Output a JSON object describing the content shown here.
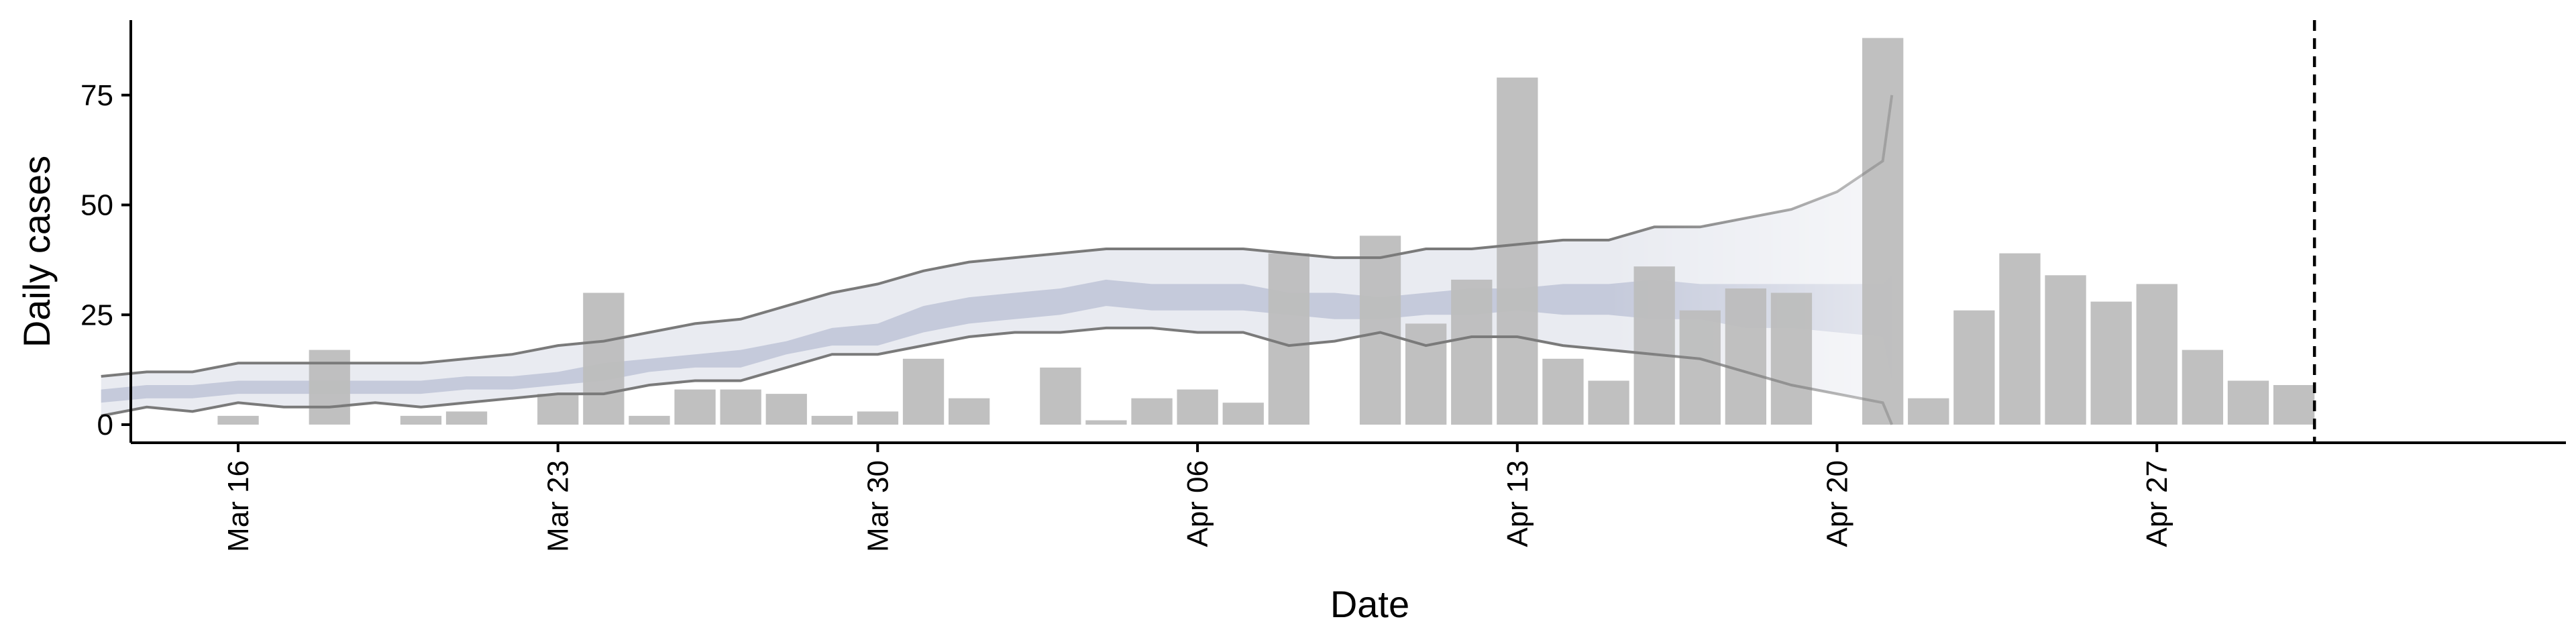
{
  "chart_data": {
    "type": "bar",
    "xlabel": "Date",
    "ylabel": "Daily cases",
    "ylim": [
      -4,
      96
    ],
    "yticks": [
      0,
      25,
      50,
      75
    ],
    "x_start": "2020-03-13",
    "x_end": "2020-04-30",
    "xticks": [
      {
        "date": "2020-03-16",
        "label": "Mar 16"
      },
      {
        "date": "2020-03-23",
        "label": "Mar 23"
      },
      {
        "date": "2020-03-30",
        "label": "Mar 30"
      },
      {
        "date": "2020-04-06",
        "label": "Apr 06"
      },
      {
        "date": "2020-04-13",
        "label": "Apr 13"
      },
      {
        "date": "2020-04-20",
        "label": "Apr 20"
      },
      {
        "date": "2020-04-27",
        "label": "Apr 27"
      }
    ],
    "bars": [
      {
        "date": "2020-03-16",
        "value": 2
      },
      {
        "date": "2020-03-18",
        "value": 17
      },
      {
        "date": "2020-03-20",
        "value": 2
      },
      {
        "date": "2020-03-21",
        "value": 3
      },
      {
        "date": "2020-03-23",
        "value": 7
      },
      {
        "date": "2020-03-24",
        "value": 30
      },
      {
        "date": "2020-03-25",
        "value": 2
      },
      {
        "date": "2020-03-26",
        "value": 8
      },
      {
        "date": "2020-03-27",
        "value": 8
      },
      {
        "date": "2020-03-28",
        "value": 7
      },
      {
        "date": "2020-03-29",
        "value": 2
      },
      {
        "date": "2020-03-30",
        "value": 3
      },
      {
        "date": "2020-03-31",
        "value": 15
      },
      {
        "date": "2020-04-01",
        "value": 6
      },
      {
        "date": "2020-04-03",
        "value": 13
      },
      {
        "date": "2020-04-04",
        "value": 1
      },
      {
        "date": "2020-04-05",
        "value": 6
      },
      {
        "date": "2020-04-06",
        "value": 8
      },
      {
        "date": "2020-04-07",
        "value": 5
      },
      {
        "date": "2020-04-08",
        "value": 39
      },
      {
        "date": "2020-04-10",
        "value": 43
      },
      {
        "date": "2020-04-11",
        "value": 23
      },
      {
        "date": "2020-04-12",
        "value": 33
      },
      {
        "date": "2020-04-13",
        "value": 79
      },
      {
        "date": "2020-04-14",
        "value": 15
      },
      {
        "date": "2020-04-15",
        "value": 10
      },
      {
        "date": "2020-04-16",
        "value": 36
      },
      {
        "date": "2020-04-17",
        "value": 26
      },
      {
        "date": "2020-04-18",
        "value": 31
      },
      {
        "date": "2020-04-19",
        "value": 30
      },
      {
        "date": "2020-04-21",
        "value": 88
      },
      {
        "date": "2020-04-22",
        "value": 6
      },
      {
        "date": "2020-04-23",
        "value": 26
      },
      {
        "date": "2020-04-24",
        "value": 39
      },
      {
        "date": "2020-04-25",
        "value": 34
      },
      {
        "date": "2020-04-26",
        "value": 28
      },
      {
        "date": "2020-04-27",
        "value": 32
      },
      {
        "date": "2020-04-28",
        "value": 17
      },
      {
        "date": "2020-04-29",
        "value": 10
      },
      {
        "date": "2020-04-30",
        "value": 9
      }
    ],
    "estimate_band": {
      "dates": [
        "2020-03-13",
        "2020-03-14",
        "2020-03-15",
        "2020-03-16",
        "2020-03-17",
        "2020-03-18",
        "2020-03-19",
        "2020-03-20",
        "2020-03-21",
        "2020-03-22",
        "2020-03-23",
        "2020-03-24",
        "2020-03-25",
        "2020-03-26",
        "2020-03-27",
        "2020-03-28",
        "2020-03-29",
        "2020-03-30",
        "2020-03-31",
        "2020-04-01",
        "2020-04-02",
        "2020-04-03",
        "2020-04-04",
        "2020-04-05",
        "2020-04-06",
        "2020-04-07",
        "2020-04-08",
        "2020-04-09",
        "2020-04-10",
        "2020-04-11",
        "2020-04-12",
        "2020-04-13",
        "2020-04-14",
        "2020-04-15",
        "2020-04-16",
        "2020-04-17",
        "2020-04-18",
        "2020-04-19",
        "2020-04-20",
        "2020-04-21"
      ],
      "outer_upper": [
        11,
        12,
        12,
        14,
        14,
        14,
        14,
        14,
        15,
        16,
        18,
        19,
        21,
        23,
        24,
        27,
        30,
        32,
        35,
        37,
        38,
        39,
        40,
        40,
        40,
        40,
        39,
        38,
        38,
        40,
        40,
        41,
        42,
        42,
        45,
        45,
        47,
        49,
        53,
        60
      ],
      "outer_lower": [
        2,
        4,
        3,
        5,
        4,
        4,
        5,
        4,
        5,
        6,
        7,
        7,
        9,
        10,
        10,
        13,
        16,
        16,
        18,
        20,
        21,
        21,
        22,
        22,
        21,
        21,
        18,
        19,
        21,
        18,
        20,
        20,
        18,
        17,
        16,
        15,
        12,
        9,
        7,
        5
      ],
      "outer_upper_end": 75,
      "outer_lower_end": 0,
      "inner_upper": [
        8,
        9,
        9,
        10,
        10,
        10,
        10,
        10,
        11,
        11,
        12,
        14,
        15,
        16,
        17,
        19,
        22,
        23,
        27,
        29,
        30,
        31,
        33,
        32,
        32,
        32,
        30,
        30,
        29,
        30,
        31,
        31,
        32,
        32,
        33,
        32,
        32,
        32,
        32,
        32
      ],
      "inner_lower": [
        5,
        6,
        6,
        7,
        7,
        7,
        7,
        7,
        8,
        8,
        9,
        10,
        12,
        13,
        13,
        16,
        18,
        18,
        21,
        23,
        24,
        25,
        27,
        26,
        26,
        26,
        25,
        24,
        24,
        25,
        25,
        26,
        25,
        25,
        24,
        24,
        22,
        22,
        21,
        20
      ],
      "inner_upper_end": 34,
      "inner_lower_end": 10
    },
    "forecast_cutoff": "2020-04-30",
    "colors": {
      "bar": "#bdbdbd",
      "outer_band": "#e9ebf1",
      "inner_band": "#c5cadb",
      "band_line": "#7a7a7a",
      "axis": "#000000"
    }
  }
}
